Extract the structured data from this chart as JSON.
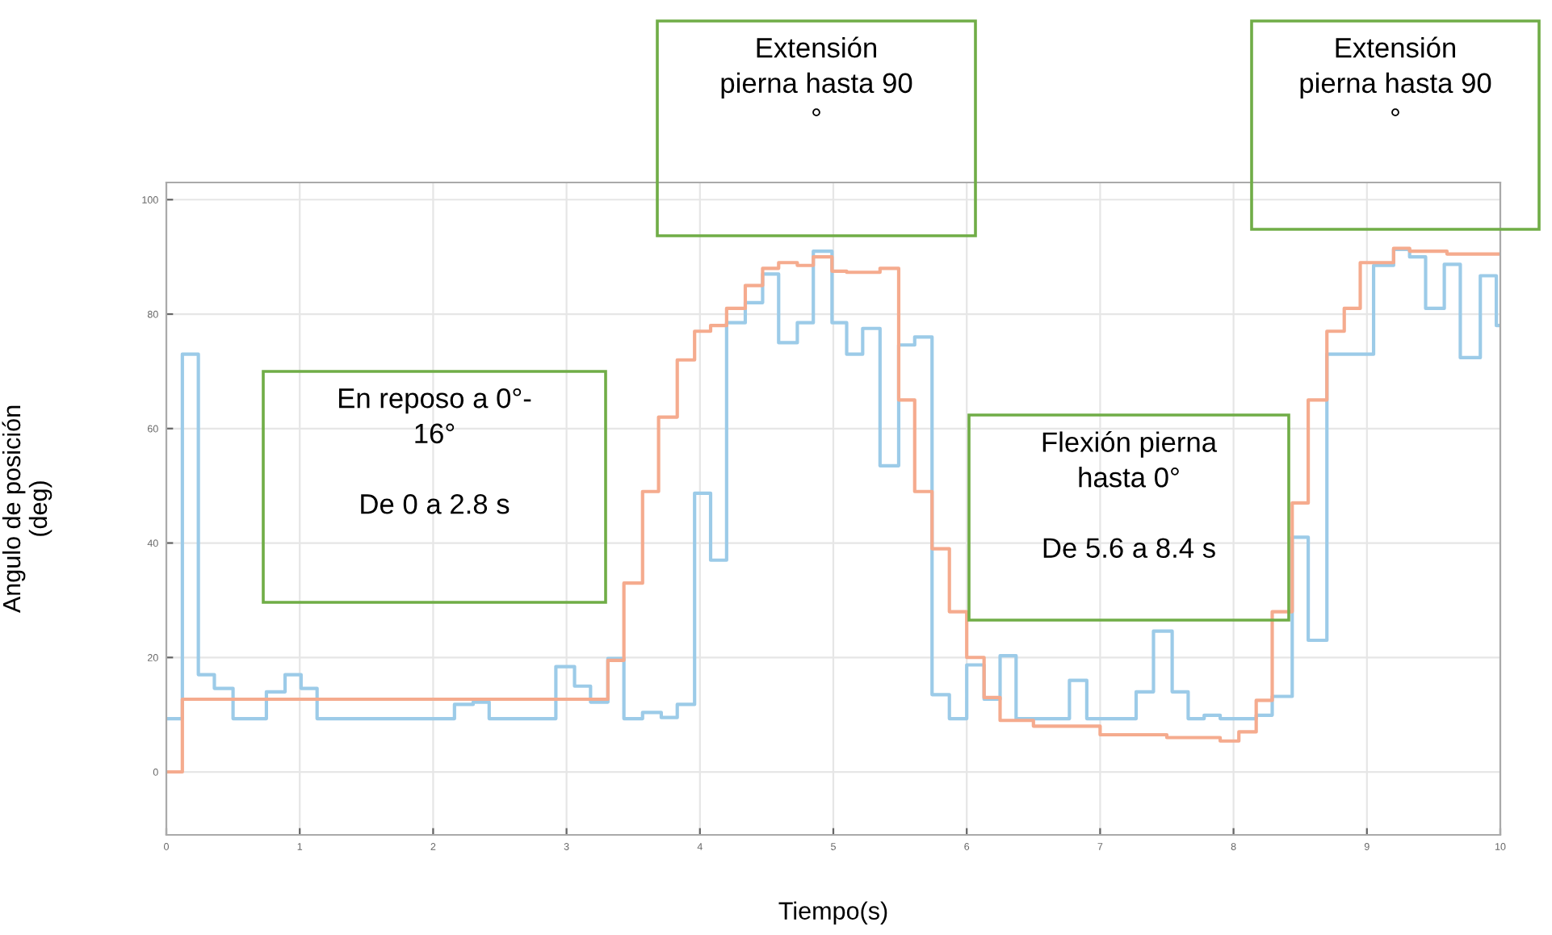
{
  "chart_data": {
    "type": "step",
    "xlabel": "Tiempo(s)",
    "ylabel": "Angulo de posición\n(deg)",
    "xlim": [
      0,
      10
    ],
    "xticks": [
      0,
      1,
      2,
      3,
      4,
      5,
      6,
      7,
      8,
      9,
      10
    ],
    "ylim": [
      -11,
      103
    ],
    "yticks": [
      0,
      20,
      40,
      60,
      80,
      100
    ],
    "grid": true,
    "series": [
      {
        "color": "#9ccbe8",
        "x": [
          0,
          0.12,
          0.24,
          0.36,
          0.5,
          0.75,
          0.89,
          1.01,
          1.13,
          2.16,
          2.3,
          2.42,
          2.92,
          3.06,
          3.18,
          3.31,
          3.43,
          3.57,
          3.71,
          3.83,
          3.96,
          4.08,
          4.2,
          4.34,
          4.47,
          4.59,
          4.73,
          4.85,
          4.99,
          5.1,
          5.22,
          5.35,
          5.49,
          5.61,
          5.74,
          5.87,
          6.0,
          6.13,
          6.25,
          6.37,
          6.77,
          6.9,
          7.27,
          7.4,
          7.54,
          7.66,
          7.78,
          7.9,
          8.17,
          8.29,
          8.44,
          8.56,
          8.7,
          9.05,
          9.2,
          9.32,
          9.44,
          9.58,
          9.7,
          9.85,
          9.97,
          10
        ],
        "values": [
          9.3,
          73,
          17,
          14.6,
          9.3,
          14,
          17,
          14.6,
          9.3,
          11.8,
          12.2,
          9.3,
          18.4,
          15,
          12.2,
          19.8,
          9.3,
          10.4,
          9.5,
          11.8,
          48.7,
          37,
          78.5,
          82,
          87,
          75,
          78.5,
          91,
          78.5,
          73,
          77.5,
          53.5,
          74.6,
          76,
          13.5,
          9.3,
          18.7,
          12.7,
          20.3,
          9.3,
          16,
          9.3,
          14,
          24.6,
          14,
          9.3,
          9.9,
          9.3,
          9.9,
          13.2,
          41,
          23,
          73,
          88.5,
          91.3,
          90,
          81,
          88.7,
          72.4,
          86.7,
          78,
          78
        ]
      },
      {
        "color": "#f5ab8e",
        "x": [
          0,
          0.12,
          3.31,
          3.43,
          3.57,
          3.69,
          3.83,
          3.96,
          4.08,
          4.2,
          4.34,
          4.47,
          4.59,
          4.73,
          4.85,
          4.99,
          5.1,
          5.22,
          5.35,
          5.49,
          5.61,
          5.74,
          5.87,
          6.0,
          6.13,
          6.25,
          6.5,
          7.0,
          7.5,
          7.9,
          8.04,
          8.17,
          8.29,
          8.44,
          8.56,
          8.7,
          8.83,
          8.95,
          9.2,
          9.32,
          9.6,
          10
        ],
        "values": [
          0,
          12.7,
          19.5,
          33,
          49,
          62,
          72,
          77,
          78,
          81,
          85,
          88,
          89,
          88.5,
          90,
          87.5,
          87.3,
          87.3,
          88,
          65,
          49,
          39,
          28,
          20,
          13,
          9,
          8,
          6.5,
          6,
          5.4,
          7,
          12.5,
          28,
          47,
          65,
          77,
          81,
          89,
          91.5,
          91,
          90.5,
          90.5
        ]
      }
    ],
    "annotations": [
      "En reposo a 0°-\n16°\n\nDe 0 a 2.8 s",
      "Extensión\npierna hasta 90\n°",
      "Flexión pierna\nhasta 0°\n\nDe 5.6 a 8.4 s",
      "Extensión\npierna hasta 90\n°"
    ]
  }
}
